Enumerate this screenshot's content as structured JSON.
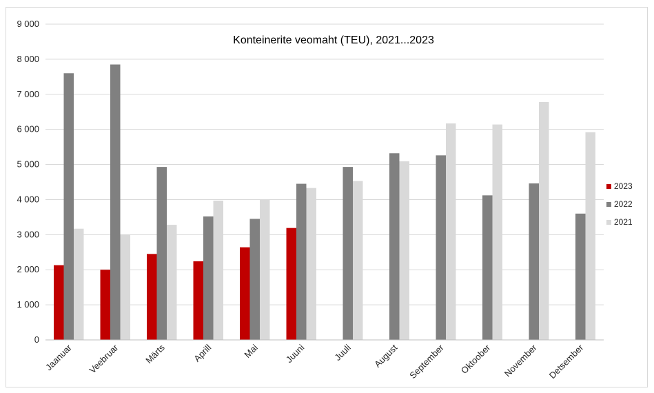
{
  "chart_data": {
    "type": "bar",
    "title": "Konteinerite veomaht (TEU), 2021...2023",
    "xlabel": "",
    "ylabel": "",
    "ylim": [
      0,
      9000
    ],
    "yticks": [
      0,
      1000,
      2000,
      3000,
      4000,
      5000,
      6000,
      7000,
      8000,
      9000
    ],
    "ytick_labels": [
      "0",
      "1 000",
      "2 000",
      "3 000",
      "4 000",
      "5 000",
      "6 000",
      "7 000",
      "8 000",
      "9 000"
    ],
    "grid": true,
    "legend_position": "right",
    "categories": [
      "Jaanuar",
      "Veebruar",
      "Märts",
      "Aprill",
      "Mai",
      "Juuni",
      "Juuli",
      "August",
      "September",
      "Oktoober",
      "November",
      "Detsember"
    ],
    "series": [
      {
        "name": "2023",
        "color": "#c00000",
        "values": [
          2130,
          2000,
          2450,
          2240,
          2640,
          3190,
          null,
          null,
          null,
          null,
          null,
          null
        ]
      },
      {
        "name": "2022",
        "color": "#808080",
        "values": [
          7600,
          7850,
          4930,
          3520,
          3450,
          4450,
          4930,
          5320,
          5260,
          4120,
          4460,
          3600
        ]
      },
      {
        "name": "2021",
        "color": "#d9d9d9",
        "values": [
          3170,
          3000,
          3280,
          3970,
          4010,
          4330,
          4530,
          5090,
          6170,
          6140,
          6780,
          5920
        ]
      }
    ]
  }
}
